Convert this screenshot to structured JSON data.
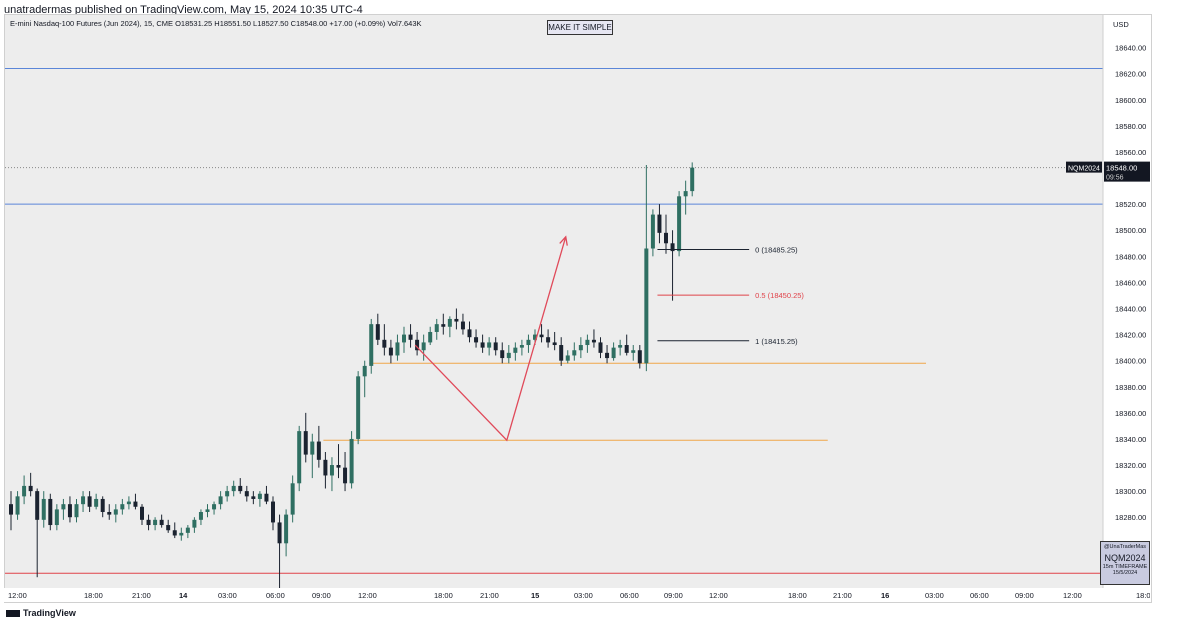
{
  "publisher_line": "unatradermas published on TradingView.com, May 15, 2024 10:35 UTC-4",
  "legend": "E-mini Nasdaq-100 Futures (Jun 2024), 15, CME  O18531.25  H18551.50  L18527.50  C18548.00  +17.00 (+0.09%)  Vol7.643K",
  "badge": "MAKE IT SIMPLE",
  "currency": "USD",
  "symbol": "NQM2024",
  "last_price": "18548.00",
  "countdown": "09:56",
  "watermark": {
    "handle": "@UnaTraderMas",
    "symbol": "NQM2024",
    "timeframe": "15m TIMEFRAME",
    "date": "15/5/2024"
  },
  "branding": "TradingView",
  "colors": {
    "up": "#2f6f62",
    "down": "#1b2330",
    "blue_line": "#5b86d8",
    "red_line": "#e0434a",
    "orange_line": "#f0a64a",
    "arrow": "#e04a5a"
  },
  "chart_data": {
    "type": "candlestick",
    "ylim": [
      18215,
      18665
    ],
    "y_ticks": [
      "18640.00",
      "18620.00",
      "18600.00",
      "18580.00",
      "18560.00",
      "18540.00",
      "18520.00",
      "18500.00",
      "18480.00",
      "18460.00",
      "18440.00",
      "18420.00",
      "18400.00",
      "18380.00",
      "18360.00",
      "18340.00",
      "18320.00",
      "18300.00",
      "18280.00",
      "18260.00",
      "18240.00",
      "18220.00"
    ],
    "x_labels": [
      "12:00",
      "18:00",
      "21:00",
      "14",
      "03:00",
      "06:00",
      "09:00",
      "12:00",
      "18:00",
      "21:00",
      "15",
      "03:00",
      "06:00",
      "09:00",
      "12:00",
      "18:00",
      "21:00",
      "16",
      "03:00",
      "06:00",
      "09:00",
      "12:00",
      "18:00"
    ],
    "candles": [
      [
        18290,
        18300,
        18270,
        18282
      ],
      [
        18282,
        18300,
        18278,
        18296
      ],
      [
        18296,
        18312,
        18290,
        18304
      ],
      [
        18304,
        18314,
        18296,
        18300
      ],
      [
        18300,
        18302,
        18234,
        18278
      ],
      [
        18278,
        18300,
        18272,
        18294
      ],
      [
        18294,
        18298,
        18270,
        18274
      ],
      [
        18274,
        18290,
        18270,
        18286
      ],
      [
        18286,
        18294,
        18278,
        18290
      ],
      [
        18290,
        18296,
        18276,
        18280
      ],
      [
        18280,
        18294,
        18276,
        18290
      ],
      [
        18290,
        18300,
        18284,
        18296
      ],
      [
        18296,
        18300,
        18284,
        18288
      ],
      [
        18288,
        18298,
        18286,
        18294
      ],
      [
        18294,
        18296,
        18280,
        18284
      ],
      [
        18284,
        18290,
        18278,
        18282
      ],
      [
        18282,
        18290,
        18276,
        18286
      ],
      [
        18286,
        18294,
        18282,
        18290
      ],
      [
        18290,
        18296,
        18286,
        18292
      ],
      [
        18292,
        18298,
        18286,
        18288
      ],
      [
        18288,
        18290,
        18274,
        18278
      ],
      [
        18278,
        18282,
        18270,
        18274
      ],
      [
        18274,
        18280,
        18270,
        18278
      ],
      [
        18278,
        18282,
        18272,
        18274
      ],
      [
        18274,
        18278,
        18268,
        18270
      ],
      [
        18270,
        18276,
        18264,
        18266
      ],
      [
        18266,
        18272,
        18262,
        18268
      ],
      [
        18268,
        18274,
        18264,
        18272
      ],
      [
        18272,
        18280,
        18268,
        18278
      ],
      [
        18278,
        18286,
        18274,
        18284
      ],
      [
        18284,
        18290,
        18280,
        18286
      ],
      [
        18286,
        18292,
        18282,
        18290
      ],
      [
        18290,
        18300,
        18286,
        18296
      ],
      [
        18296,
        18304,
        18292,
        18300
      ],
      [
        18300,
        18308,
        18296,
        18304
      ],
      [
        18304,
        18310,
        18298,
        18300
      ],
      [
        18300,
        18304,
        18292,
        18296
      ],
      [
        18296,
        18300,
        18290,
        18294
      ],
      [
        18294,
        18300,
        18288,
        18298
      ],
      [
        18298,
        18304,
        18290,
        18292
      ],
      [
        18292,
        18296,
        18270,
        18276
      ],
      [
        18276,
        18282,
        18216,
        18260
      ],
      [
        18260,
        18286,
        18250,
        18282
      ],
      [
        18282,
        18312,
        18276,
        18306
      ],
      [
        18306,
        18350,
        18300,
        18346
      ],
      [
        18346,
        18360,
        18322,
        18328
      ],
      [
        18328,
        18344,
        18310,
        18338
      ],
      [
        18338,
        18350,
        18318,
        18324
      ],
      [
        18324,
        18330,
        18302,
        18312
      ],
      [
        18312,
        18326,
        18300,
        18320
      ],
      [
        18320,
        18336,
        18310,
        18318
      ],
      [
        18318,
        18330,
        18300,
        18306
      ],
      [
        18306,
        18346,
        18302,
        18340
      ],
      [
        18340,
        18392,
        18336,
        18388
      ],
      [
        18388,
        18400,
        18372,
        18396
      ],
      [
        18396,
        18432,
        18390,
        18428
      ],
      [
        18428,
        18436,
        18412,
        18416
      ],
      [
        18416,
        18428,
        18404,
        18410
      ],
      [
        18410,
        18416,
        18398,
        18404
      ],
      [
        18404,
        18420,
        18400,
        18414
      ],
      [
        18414,
        18426,
        18406,
        18420
      ],
      [
        18420,
        18428,
        18410,
        18416
      ],
      [
        18416,
        18422,
        18404,
        18408
      ],
      [
        18408,
        18420,
        18400,
        18414
      ],
      [
        18414,
        18426,
        18412,
        18422
      ],
      [
        18422,
        18432,
        18416,
        18428
      ],
      [
        18428,
        18436,
        18420,
        18426
      ],
      [
        18426,
        18434,
        18418,
        18432
      ],
      [
        18432,
        18440,
        18424,
        18430
      ],
      [
        18430,
        18436,
        18420,
        18424
      ],
      [
        18424,
        18430,
        18414,
        18418
      ],
      [
        18418,
        18424,
        18410,
        18414
      ],
      [
        18414,
        18420,
        18406,
        18410
      ],
      [
        18410,
        18418,
        18404,
        18414
      ],
      [
        18414,
        18418,
        18404,
        18408
      ],
      [
        18408,
        18414,
        18398,
        18402
      ],
      [
        18402,
        18412,
        18398,
        18406
      ],
      [
        18406,
        18414,
        18400,
        18410
      ],
      [
        18410,
        18416,
        18404,
        18412
      ],
      [
        18412,
        18420,
        18406,
        18416
      ],
      [
        18416,
        18424,
        18412,
        18420
      ],
      [
        18420,
        18428,
        18414,
        18418
      ],
      [
        18418,
        18424,
        18410,
        18414
      ],
      [
        18414,
        18422,
        18408,
        18412
      ],
      [
        18412,
        18418,
        18396,
        18400
      ],
      [
        18400,
        18408,
        18398,
        18404
      ],
      [
        18404,
        18414,
        18400,
        18408
      ],
      [
        18408,
        18418,
        18402,
        18412
      ],
      [
        18412,
        18420,
        18406,
        18416
      ],
      [
        18416,
        18424,
        18410,
        18414
      ],
      [
        18414,
        18418,
        18402,
        18406
      ],
      [
        18406,
        18412,
        18398,
        18402
      ],
      [
        18402,
        18414,
        18400,
        18410
      ],
      [
        18410,
        18416,
        18404,
        18412
      ],
      [
        18412,
        18420,
        18404,
        18406
      ],
      [
        18406,
        18412,
        18400,
        18408
      ],
      [
        18408,
        18412,
        18394,
        18398
      ],
      [
        18398,
        18550,
        18392,
        18486
      ],
      [
        18486,
        18516,
        18480,
        18512
      ],
      [
        18512,
        18520,
        18490,
        18498
      ],
      [
        18498,
        18512,
        18482,
        18490
      ],
      [
        18490,
        18500,
        18446,
        18484
      ],
      [
        18484,
        18530,
        18480,
        18526
      ],
      [
        18526,
        18538,
        18512,
        18530
      ],
      [
        18530,
        18552,
        18526,
        18548
      ]
    ],
    "levels": [
      {
        "price": 18624,
        "color": "blue"
      },
      {
        "price": 18520,
        "color": "blue"
      },
      {
        "price": 18237,
        "color": "red"
      }
    ],
    "fib": [
      {
        "level": "0",
        "price": 18485.25,
        "label": "0 (18485.25)"
      },
      {
        "level": "0.5",
        "price": 18450.25,
        "label": "0.5 (18450.25)"
      },
      {
        "level": "1",
        "price": 18415.25,
        "label": "1 (18415.25)"
      }
    ],
    "zones": [
      {
        "price": 18398,
        "from_bar": 55,
        "to_bar": 140
      },
      {
        "price": 18339,
        "from_bar": 48,
        "to_bar": 125
      }
    ],
    "arrow_path": [
      [
        62,
        18412
      ],
      [
        76,
        18339
      ],
      [
        85,
        18495
      ]
    ]
  }
}
